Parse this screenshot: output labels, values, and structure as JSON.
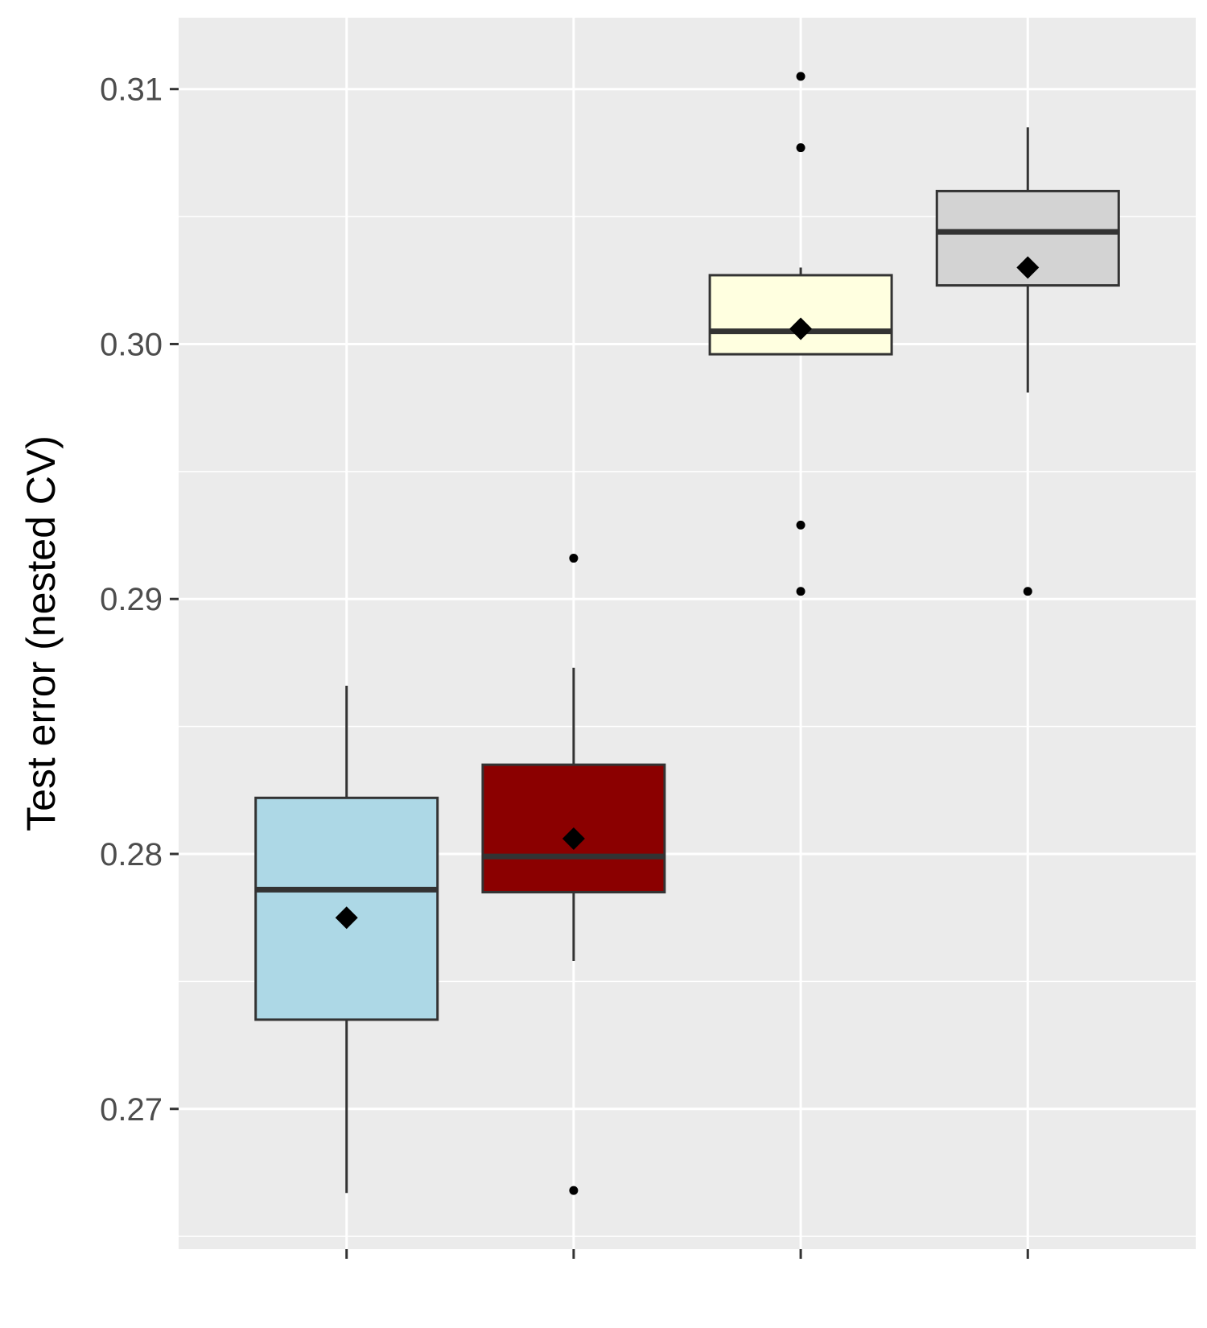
{
  "chart_data": {
    "type": "boxplot",
    "title": "",
    "xlabel": "",
    "ylabel": "Test error (nested CV)",
    "ylim": [
      0.2645,
      0.3128
    ],
    "y_ticks": [
      0.27,
      0.28,
      0.29,
      0.3,
      0.31
    ],
    "y_tick_labels": [
      "0.27",
      "0.28",
      "0.29",
      "0.30",
      "0.31"
    ],
    "y_minor_ticks": [
      0.265,
      0.275,
      0.285,
      0.295,
      0.305
    ],
    "grid": true,
    "legend": "none",
    "panel_background": "#ebebeb",
    "grid_color": "#ffffff",
    "box_edge_color": "#333333",
    "boxes": [
      {
        "fill": "#add8e6",
        "whisker_low": 0.2667,
        "q1": 0.2735,
        "median": 0.2786,
        "q3": 0.2822,
        "whisker_high": 0.2866,
        "mean": 0.2775,
        "outliers": []
      },
      {
        "fill": "#8b0000",
        "whisker_low": 0.2758,
        "q1": 0.2785,
        "median": 0.2799,
        "q3": 0.2835,
        "whisker_high": 0.2873,
        "mean": 0.2806,
        "outliers": [
          0.2916,
          0.2668
        ]
      },
      {
        "fill": "#ffffe0",
        "whisker_low": 0.2996,
        "q1": 0.2996,
        "median": 0.3005,
        "q3": 0.3027,
        "whisker_high": 0.303,
        "mean": 0.3006,
        "outliers": [
          0.3105,
          0.3077,
          0.2929,
          0.2903
        ]
      },
      {
        "fill": "#d3d3d3",
        "whisker_low": 0.2981,
        "q1": 0.3023,
        "median": 0.3044,
        "q3": 0.306,
        "whisker_high": 0.3085,
        "mean": 0.303,
        "outliers": [
          0.2903
        ]
      }
    ]
  }
}
